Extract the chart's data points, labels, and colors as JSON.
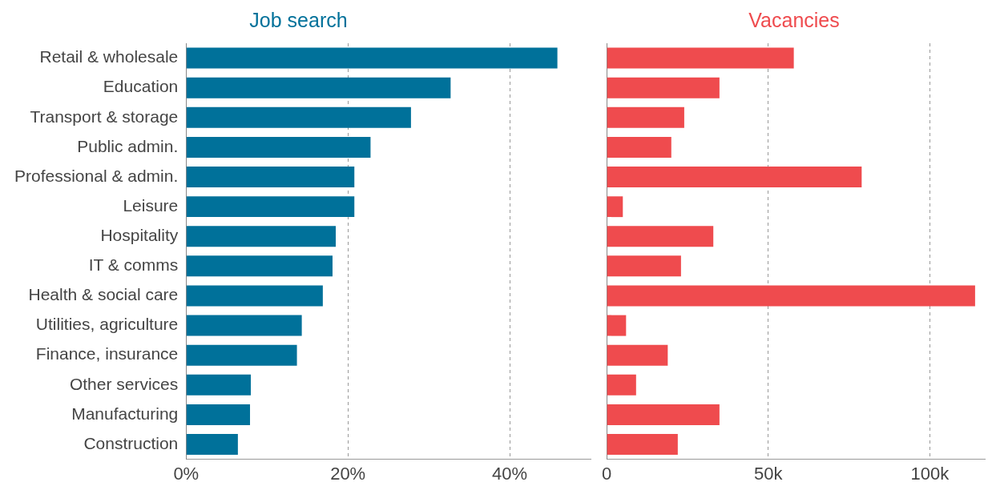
{
  "chart_data": [
    {
      "type": "bar",
      "orientation": "horizontal",
      "title": "Job search",
      "categories": [
        "Retail & wholesale",
        "Education",
        "Transport & storage",
        "Public admin.",
        "Professional & admin.",
        "Leisure",
        "Hospitality",
        "IT & comms",
        "Health & social care",
        "Utilities, agriculture",
        "Finance, insurance",
        "Other services",
        "Manufacturing",
        "Construction"
      ],
      "series": [
        {
          "color": "#00719a",
          "values": [
            45.9,
            32.7,
            27.8,
            22.8,
            20.8,
            20.8,
            18.5,
            18.1,
            16.9,
            14.3,
            13.7,
            8.0,
            7.9,
            6.4
          ]
        }
      ],
      "xlim": [
        0,
        50
      ],
      "xticks": [
        {
          "value": 0,
          "label": "0%"
        },
        {
          "value": 20,
          "label": "20%"
        },
        {
          "value": 40,
          "label": "40%"
        }
      ],
      "grid": "x"
    },
    {
      "type": "bar",
      "orientation": "horizontal",
      "title": "Vacancies",
      "categories": [
        null,
        null,
        null,
        null,
        null,
        null,
        null,
        null,
        null,
        null,
        null,
        null,
        null,
        null
      ],
      "series": [
        {
          "color": "#ef4b4e",
          "values": [
            57.9,
            34.9,
            24.0,
            20.0,
            78.9,
            5.0,
            33.0,
            23.0,
            114.0,
            6.0,
            18.9,
            9.1,
            34.9,
            22.0
          ]
        }
      ],
      "xlim": [
        0,
        117
      ],
      "xticks": [
        0,
        {
          "value": 50,
          "label": "50k"
        },
        {
          "value": 100,
          "label": "100k"
        }
      ],
      "grid": "x",
      "tick_labels": "x"
    }
  ]
}
